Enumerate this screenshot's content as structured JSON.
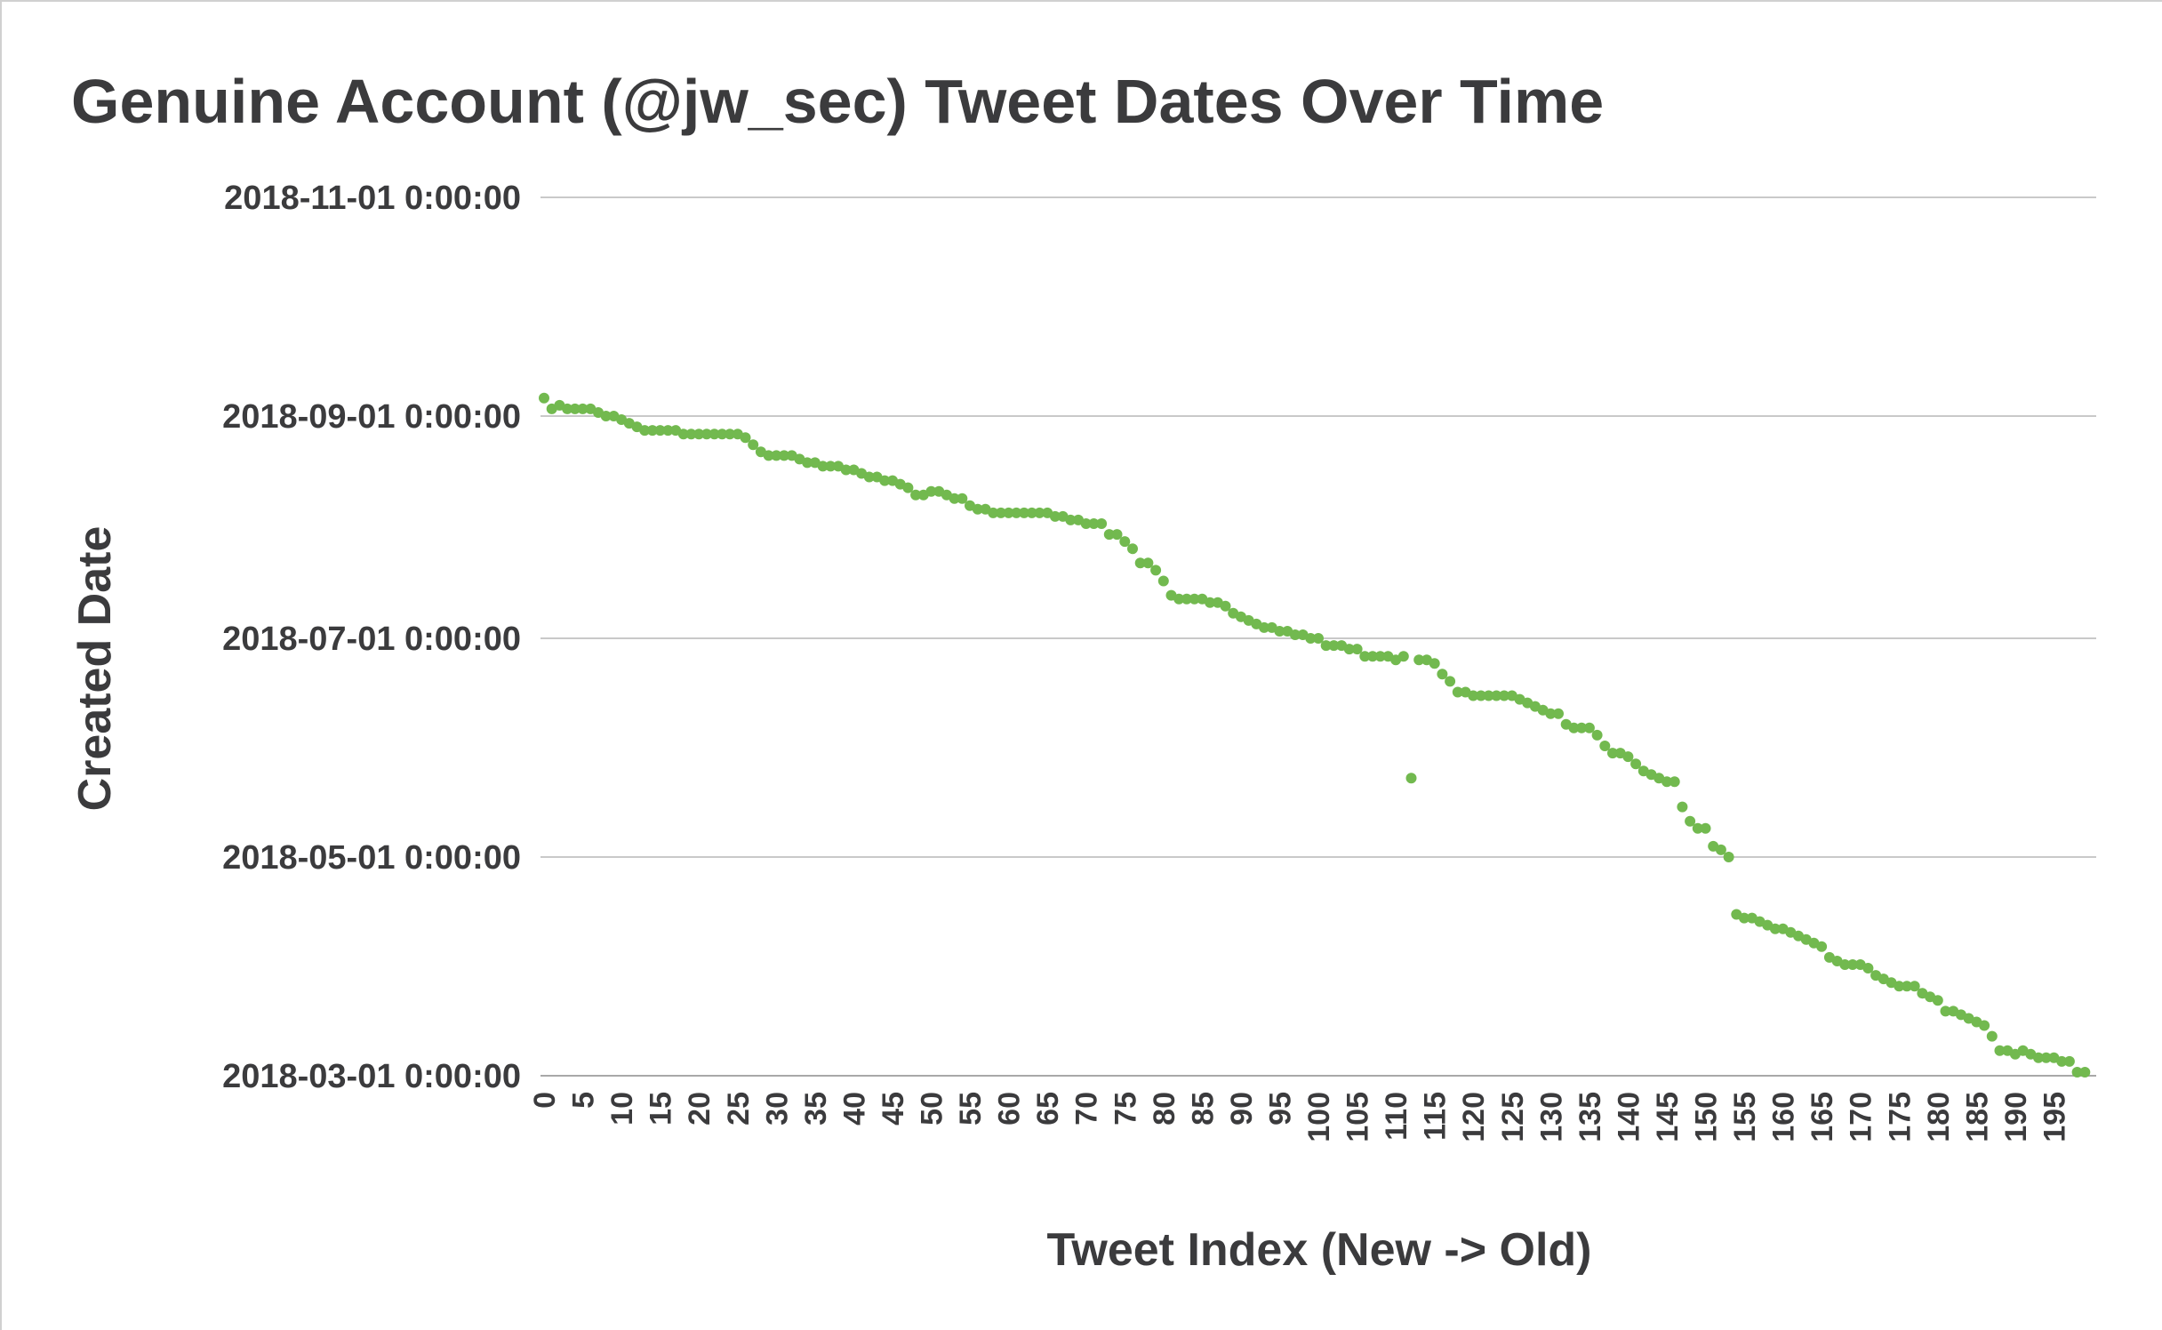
{
  "chart_data": {
    "type": "scatter",
    "title": "Genuine Account (@jw_sec) Tweet Dates Over Time",
    "xlabel": "Tweet Index (New -> Old)",
    "ylabel": "Created Date",
    "xlim": [
      0,
      200
    ],
    "ylim": [
      "2018-03-01",
      "2018-11-01"
    ],
    "y_ticks": [
      "2018-03-01 0:00:00",
      "2018-05-01 0:00:00",
      "2018-07-01 0:00:00",
      "2018-09-01 0:00:00",
      "2018-11-01 0:00:00"
    ],
    "x_ticks": [
      "0",
      "5",
      "10",
      "15",
      "20",
      "25",
      "30",
      "35",
      "40",
      "45",
      "50",
      "55",
      "60",
      "65",
      "70",
      "75",
      "80",
      "85",
      "90",
      "95",
      "100",
      "105",
      "110",
      "115",
      "120",
      "125",
      "130",
      "135",
      "140",
      "145",
      "150",
      "155",
      "160",
      "165",
      "170",
      "175",
      "180",
      "185",
      "190",
      "195"
    ],
    "grid": true,
    "legend": "none",
    "color": "#72b94f",
    "series": [
      {
        "y": [
          "2018-09-06",
          "2018-09-03",
          "2018-09-04",
          "2018-09-03",
          "2018-09-03",
          "2018-09-03",
          "2018-09-03",
          "2018-09-02",
          "2018-09-01",
          "2018-09-01",
          "2018-08-31",
          "2018-08-30",
          "2018-08-29",
          "2018-08-28",
          "2018-08-28",
          "2018-08-28",
          "2018-08-28",
          "2018-08-28",
          "2018-08-27",
          "2018-08-27",
          "2018-08-27",
          "2018-08-27",
          "2018-08-27",
          "2018-08-27",
          "2018-08-27",
          "2018-08-27",
          "2018-08-26",
          "2018-08-24",
          "2018-08-22",
          "2018-08-21",
          "2018-08-21",
          "2018-08-21",
          "2018-08-21",
          "2018-08-20",
          "2018-08-19",
          "2018-08-19",
          "2018-08-18",
          "2018-08-18",
          "2018-08-18",
          "2018-08-17",
          "2018-08-17",
          "2018-08-16",
          "2018-08-15",
          "2018-08-15",
          "2018-08-14",
          "2018-08-14",
          "2018-08-13",
          "2018-08-12",
          "2018-08-10",
          "2018-08-10",
          "2018-08-11",
          "2018-08-11",
          "2018-08-10",
          "2018-08-09",
          "2018-08-09",
          "2018-08-07",
          "2018-08-06",
          "2018-08-06",
          "2018-08-05",
          "2018-08-05",
          "2018-08-05",
          "2018-08-05",
          "2018-08-05",
          "2018-08-05",
          "2018-08-05",
          "2018-08-05",
          "2018-08-04",
          "2018-08-04",
          "2018-08-03",
          "2018-08-03",
          "2018-08-02",
          "2018-08-02",
          "2018-08-02",
          "2018-07-30",
          "2018-07-30",
          "2018-07-28",
          "2018-07-26",
          "2018-07-22",
          "2018-07-22",
          "2018-07-20",
          "2018-07-17",
          "2018-07-13",
          "2018-07-12",
          "2018-07-12",
          "2018-07-12",
          "2018-07-12",
          "2018-07-11",
          "2018-07-11",
          "2018-07-10",
          "2018-07-08",
          "2018-07-07",
          "2018-07-06",
          "2018-07-05",
          "2018-07-04",
          "2018-07-04",
          "2018-07-03",
          "2018-07-03",
          "2018-07-02",
          "2018-07-02",
          "2018-07-01",
          "2018-07-01",
          "2018-06-29",
          "2018-06-29",
          "2018-06-29",
          "2018-06-28",
          "2018-06-28",
          "2018-06-26",
          "2018-06-26",
          "2018-06-26",
          "2018-06-26",
          "2018-06-25",
          "2018-06-26",
          "2018-05-23",
          "2018-06-25",
          "2018-06-25",
          "2018-06-24",
          "2018-06-21",
          "2018-06-19",
          "2018-06-16",
          "2018-06-16",
          "2018-06-15",
          "2018-06-15",
          "2018-06-15",
          "2018-06-15",
          "2018-06-15",
          "2018-06-15",
          "2018-06-14",
          "2018-06-13",
          "2018-06-12",
          "2018-06-11",
          "2018-06-10",
          "2018-06-10",
          "2018-06-07",
          "2018-06-06",
          "2018-06-06",
          "2018-06-06",
          "2018-06-04",
          "2018-06-01",
          "2018-05-30",
          "2018-05-30",
          "2018-05-29",
          "2018-05-27",
          "2018-05-25",
          "2018-05-24",
          "2018-05-23",
          "2018-05-22",
          "2018-05-22",
          "2018-05-15",
          "2018-05-11",
          "2018-05-09",
          "2018-05-09",
          "2018-05-04",
          "2018-05-03",
          "2018-05-01",
          "2018-04-15",
          "2018-04-14",
          "2018-04-14",
          "2018-04-13",
          "2018-04-12",
          "2018-04-11",
          "2018-04-11",
          "2018-04-10",
          "2018-04-09",
          "2018-04-08",
          "2018-04-07",
          "2018-04-06",
          "2018-04-03",
          "2018-04-02",
          "2018-04-01",
          "2018-04-01",
          "2018-04-01",
          "2018-03-31",
          "2018-03-29",
          "2018-03-28",
          "2018-03-27",
          "2018-03-26",
          "2018-03-26",
          "2018-03-26",
          "2018-03-24",
          "2018-03-23",
          "2018-03-22",
          "2018-03-19",
          "2018-03-19",
          "2018-03-18",
          "2018-03-17",
          "2018-03-16",
          "2018-03-15",
          "2018-03-12",
          "2018-03-08",
          "2018-03-08",
          "2018-03-07",
          "2018-03-08",
          "2018-03-07",
          "2018-03-06",
          "2018-03-06",
          "2018-03-06",
          "2018-03-05",
          "2018-03-05",
          "2018-03-02",
          "2018-03-02"
        ]
      }
    ]
  }
}
